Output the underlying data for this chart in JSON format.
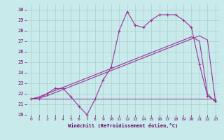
{
  "title": "",
  "xlabel": "Windchill (Refroidissement éolien,°C)",
  "ylabel": "",
  "xlim": [
    -0.5,
    23.5
  ],
  "ylim": [
    20,
    30.5
  ],
  "xticks": [
    0,
    1,
    2,
    3,
    4,
    5,
    6,
    7,
    8,
    9,
    10,
    11,
    12,
    13,
    14,
    15,
    16,
    17,
    18,
    19,
    20,
    21,
    22,
    23
  ],
  "yticks": [
    20,
    21,
    22,
    23,
    24,
    25,
    26,
    27,
    28,
    29,
    30
  ],
  "bg_color": "#c8eaea",
  "grid_color": "#aacccc",
  "line_color": "#993399",
  "line1_x": [
    0,
    1,
    2,
    3,
    4,
    5,
    6,
    7,
    8,
    9,
    10,
    11,
    12,
    13,
    14,
    15,
    16,
    17,
    18,
    19,
    20,
    21,
    22,
    23
  ],
  "line1_y": [
    21.5,
    21.5,
    21.5,
    21.5,
    21.5,
    21.5,
    21.5,
    21.5,
    21.5,
    21.5,
    21.5,
    21.5,
    21.5,
    21.5,
    21.5,
    21.5,
    21.5,
    21.5,
    21.5,
    21.5,
    21.5,
    21.5,
    21.5,
    21.5
  ],
  "line2_x": [
    0,
    1,
    2,
    3,
    4,
    5,
    6,
    7,
    8,
    9,
    10,
    11,
    12,
    13,
    14,
    15,
    16,
    17,
    18,
    19,
    20,
    21,
    22,
    23
  ],
  "line2_y": [
    21.5,
    21.5,
    22.0,
    22.5,
    22.5,
    21.7,
    20.8,
    20.0,
    21.5,
    23.3,
    24.5,
    28.0,
    29.8,
    28.5,
    28.3,
    29.0,
    29.5,
    29.5,
    29.5,
    29.0,
    28.3,
    24.8,
    21.8,
    21.3
  ],
  "line3_x": [
    0,
    1,
    2,
    3,
    4,
    5,
    6,
    7,
    8,
    9,
    10,
    11,
    12,
    13,
    14,
    15,
    16,
    17,
    18,
    19,
    20,
    21,
    22,
    23
  ],
  "line3_y": [
    21.5,
    21.6,
    21.8,
    22.1,
    22.4,
    22.7,
    23.0,
    23.3,
    23.6,
    23.9,
    24.2,
    24.5,
    24.8,
    25.1,
    25.4,
    25.7,
    26.0,
    26.3,
    26.6,
    26.9,
    27.2,
    27.5,
    27.1,
    21.2
  ],
  "line4_x": [
    0,
    1,
    2,
    3,
    4,
    5,
    6,
    7,
    8,
    9,
    10,
    11,
    12,
    13,
    14,
    15,
    16,
    17,
    18,
    19,
    20,
    21,
    22,
    23
  ],
  "line4_y": [
    21.5,
    21.7,
    22.0,
    22.3,
    22.6,
    22.9,
    23.2,
    23.5,
    23.8,
    24.1,
    24.4,
    24.7,
    25.0,
    25.3,
    25.6,
    25.9,
    26.2,
    26.5,
    26.8,
    27.1,
    27.4,
    27.0,
    22.0,
    21.2
  ]
}
